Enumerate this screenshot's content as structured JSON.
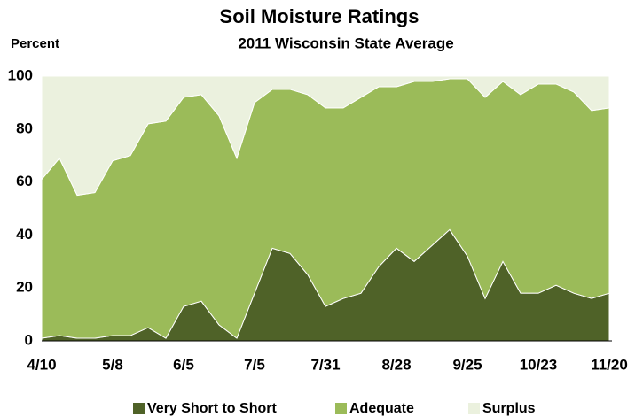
{
  "chart_data": {
    "type": "stacked_area",
    "title": "Soil Moisture Ratings",
    "subtitle": "2011 Wisconsin  State  Average",
    "y_label": "Percent",
    "categories": [
      "4/10",
      null,
      null,
      null,
      "5/8",
      null,
      null,
      null,
      "6/5",
      null,
      null,
      null,
      "7/5",
      null,
      null,
      null,
      "7/31",
      null,
      null,
      null,
      "8/28",
      null,
      null,
      null,
      "9/25",
      null,
      null,
      null,
      "10/23",
      null,
      null,
      null,
      "11/20"
    ],
    "series": [
      {
        "name": "Very Short to Short",
        "color": "#4f6228",
        "values": [
          1,
          2,
          1,
          1,
          2,
          2,
          5,
          1,
          13,
          15,
          6,
          1,
          18,
          35,
          33,
          25,
          13,
          16,
          18,
          28,
          35,
          30,
          36,
          42,
          32,
          16,
          30,
          18,
          18,
          21,
          18,
          16,
          18
        ]
      },
      {
        "name": "Adequate",
        "color": "#9bbb59",
        "values": [
          60,
          67,
          54,
          55,
          66,
          68,
          77,
          82,
          79,
          78,
          79,
          68,
          72,
          60,
          62,
          68,
          75,
          72,
          74,
          68,
          61,
          68,
          62,
          57,
          67,
          76,
          68,
          75,
          79,
          76,
          76,
          71,
          70
        ]
      },
      {
        "name": "Surplus",
        "color": "#ebf1de",
        "values": [
          39,
          31,
          45,
          44,
          32,
          30,
          18,
          17,
          8,
          7,
          15,
          31,
          10,
          5,
          5,
          7,
          12,
          12,
          8,
          4,
          4,
          2,
          2,
          1,
          1,
          8,
          2,
          7,
          3,
          3,
          6,
          13,
          12
        ]
      }
    ],
    "ylim": [
      0,
      100
    ],
    "yticks": [
      0,
      20,
      40,
      60,
      80,
      100
    ],
    "legend": "bottom"
  }
}
